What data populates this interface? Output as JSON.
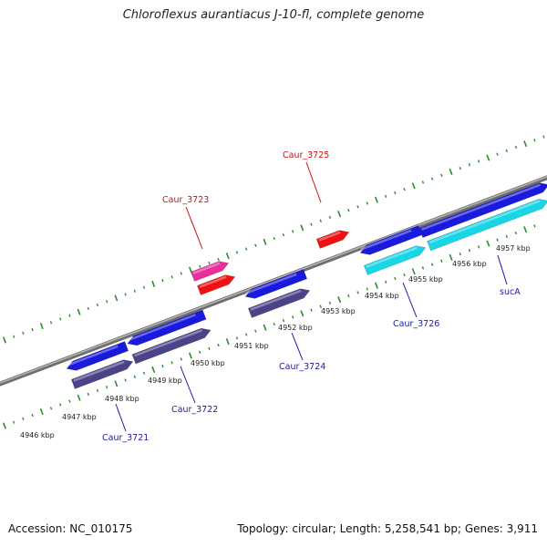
{
  "title": "Chloroflexus aurantiacus J-10-fl, complete genome",
  "footer": {
    "accession": "Accession: NC_010175",
    "summary": "Topology: circular; Length: 5,258,541 bp; Genes: 3,911"
  },
  "colors": {
    "backbone": "#8a8a8a",
    "forward_cds": "#1a1adc",
    "reverse_cds": "#4b4388",
    "cyan_feature": "#19d6e6",
    "rna_red": "#ee1111",
    "rna_pink": "#e82f9b",
    "tick_green": "#2e8b2e",
    "label_blue": "#1a1aaa",
    "label_red": "#cc1111"
  },
  "kbp_ticks": [
    "4946 kbp",
    "4947 kbp",
    "4948 kbp",
    "4949 kbp",
    "4950 kbp",
    "4951 kbp",
    "4952 kbp",
    "4953 kbp",
    "4954 kbp",
    "4955 kbp",
    "4956 kbp",
    "4957 kbp"
  ],
  "gene_labels": [
    {
      "text": "Caur_3721",
      "color": "blue"
    },
    {
      "text": "Caur_3722",
      "color": "blue"
    },
    {
      "text": "Caur_3723",
      "color": "red"
    },
    {
      "text": "Caur_3724",
      "color": "blue"
    },
    {
      "text": "Caur_3725",
      "color": "red"
    },
    {
      "text": "Caur_3726",
      "color": "blue"
    },
    {
      "text": "sucA",
      "color": "blue"
    }
  ]
}
